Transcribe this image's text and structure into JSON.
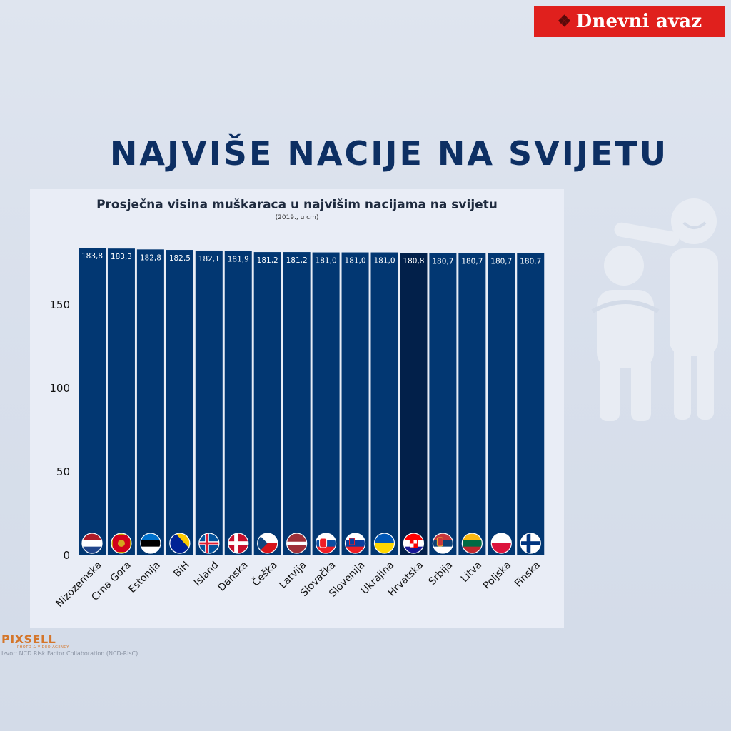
{
  "brand": {
    "name": "Dnevni avaz"
  },
  "headline": "NAJVIŠE NACIJE NA SVIJETU",
  "footer": {
    "logo": "PIXSELL",
    "logo_sub": "PHOTO & VIDEO AGENCY",
    "source": "Izvor: NCD Risk Factor Collaboration (NCD-RisC)"
  },
  "colors": {
    "bar": "#023772",
    "bar_highlight": "#02204a",
    "headline": "#0d2f63",
    "brand_red": "#e0201d"
  },
  "chart_data": {
    "type": "bar",
    "title": "Prosječna visina muškaraca u najvišim nacijama na svijetu",
    "subtitle": "(2019., u cm)",
    "xlabel": "",
    "ylabel": "",
    "ylim": [
      0,
      183.8
    ],
    "yticks": [
      0,
      50,
      100,
      150
    ],
    "grid": false,
    "legend": "none",
    "categories": [
      "Nizozemska",
      "Crna Gora",
      "Estonija",
      "BiH",
      "Island",
      "Danska",
      "Češka",
      "Latvija",
      "Slovačka",
      "Slovenija",
      "Ukrajina",
      "Hrvatska",
      "Srbija",
      "Litva",
      "Poljska",
      "Finska"
    ],
    "values": [
      183.8,
      183.3,
      182.8,
      182.5,
      182.1,
      181.9,
      181.2,
      181.2,
      181.0,
      181.0,
      181.0,
      180.8,
      180.7,
      180.7,
      180.7,
      180.7
    ],
    "value_labels": [
      "183,8",
      "183,3",
      "182,8",
      "182,5",
      "182,1",
      "181,9",
      "181,2",
      "181,2",
      "181,0",
      "181,0",
      "181,0",
      "180,8",
      "180,7",
      "180,7",
      "180,7",
      "180,7"
    ],
    "highlight": "Hrvatska",
    "flags": [
      "netherlands-flag-icon",
      "montenegro-flag-icon",
      "estonia-flag-icon",
      "bosnia-flag-icon",
      "iceland-flag-icon",
      "denmark-flag-icon",
      "czechia-flag-icon",
      "latvia-flag-icon",
      "slovakia-flag-icon",
      "slovenia-flag-icon",
      "ukraine-flag-icon",
      "croatia-flag-icon",
      "serbia-flag-icon",
      "lithuania-flag-icon",
      "poland-flag-icon",
      "finland-flag-icon"
    ]
  }
}
